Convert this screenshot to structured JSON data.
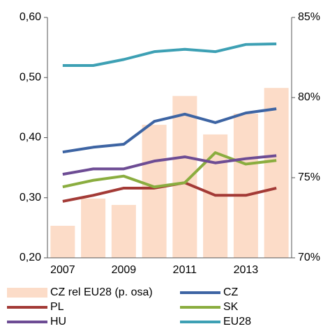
{
  "chart_data": {
    "type": "combo",
    "categories": [
      2007,
      null,
      2009,
      null,
      2011,
      null,
      2013,
      null
    ],
    "ylim": [
      0.2,
      0.6
    ],
    "yticks": [
      {
        "value": 0.2,
        "label": "0,20"
      },
      {
        "value": 0.3,
        "label": "0,30"
      },
      {
        "value": 0.4,
        "label": "0,40"
      },
      {
        "value": 0.5,
        "label": "0,50"
      },
      {
        "value": 0.6,
        "label": "0,60"
      }
    ],
    "y2lim": [
      70,
      85
    ],
    "y2ticks": [
      {
        "value": 70,
        "label": "70%"
      },
      {
        "value": 75,
        "label": "75%"
      },
      {
        "value": 80,
        "label": "80%"
      },
      {
        "value": 85,
        "label": "85%"
      }
    ],
    "series": [
      {
        "name": "CZ rel EU28 (p. osa)",
        "type": "bar",
        "axis": "y2",
        "color": "#fcdcc8",
        "values": [
          72.0,
          73.7,
          73.3,
          78.3,
          80.1,
          77.7,
          79.0,
          80.6
        ]
      },
      {
        "name": "CZ",
        "type": "line",
        "color": "#3d64a3",
        "values": [
          0.376,
          0.384,
          0.389,
          0.427,
          0.439,
          0.425,
          0.441,
          0.448
        ]
      },
      {
        "name": "PL",
        "type": "line",
        "color": "#a33a36",
        "values": [
          0.294,
          0.304,
          0.316,
          0.316,
          0.325,
          0.304,
          0.304,
          0.316
        ]
      },
      {
        "name": "SK",
        "type": "line",
        "color": "#8aad3f",
        "values": [
          0.318,
          0.329,
          0.336,
          0.318,
          0.325,
          0.375,
          0.356,
          0.362
        ]
      },
      {
        "name": "HU",
        "type": "line",
        "color": "#6d4c94",
        "values": [
          0.339,
          0.348,
          0.348,
          0.361,
          0.368,
          0.358,
          0.365,
          0.37
        ]
      },
      {
        "name": "EU28",
        "type": "line",
        "color": "#3da0b4",
        "values": [
          0.52,
          0.52,
          0.53,
          0.543,
          0.547,
          0.543,
          0.555,
          0.556
        ]
      }
    ]
  }
}
